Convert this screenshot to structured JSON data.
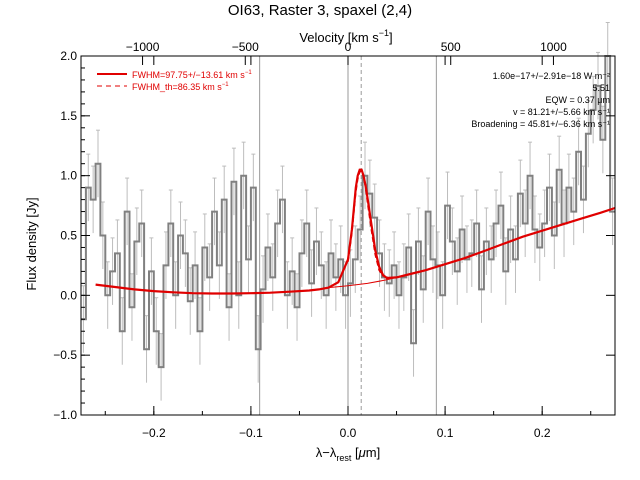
{
  "chart_data": {
    "type": "line",
    "title": "OI63, Raster 3, spaxel (2,4)",
    "xlabel": "λ−λ_rest [μm]",
    "xlabel_main": "λ−λ",
    "xlabel_sub": "rest",
    "xlabel_unit_open": " [",
    "xlabel_unit_mu": "μ",
    "xlabel_unit_close": "m]",
    "ylabel": "Flux density [Jy]",
    "top_axis_label": "Velocity [km s⁻¹]",
    "top_axis_label_base": "Velocity [km s",
    "top_axis_label_sup": "−1",
    "top_axis_label_close": "]",
    "xlim": [
      -0.275,
      0.275
    ],
    "ylim": [
      -1.0,
      2.0
    ],
    "x_ticks": [
      -0.2,
      -0.1,
      0.0,
      0.1,
      0.2
    ],
    "x_tick_labels": [
      "−0.2",
      "−0.1",
      "0.0",
      "0.1",
      "0.2"
    ],
    "y_ticks": [
      -1.0,
      -0.5,
      0.0,
      0.5,
      1.0,
      1.5,
      2.0
    ],
    "y_tick_labels": [
      "−1.0",
      "−0.5",
      "0.0",
      "0.5",
      "1.0",
      "1.5",
      "2.0"
    ],
    "top_ticks_kms": [
      -1000,
      -500,
      0,
      500,
      1000
    ],
    "top_tick_labels": [
      "−1000",
      "−500",
      "0",
      "500",
      "1000"
    ],
    "top_tick_wavelengths": [
      -0.2116,
      -0.1058,
      0.0,
      0.1058,
      0.2116
    ],
    "vertical_lines": [
      -0.091,
      0.0,
      0.091
    ],
    "line_center_dashed": 0.0136,
    "legend": {
      "placement": "top-left",
      "entries": [
        {
          "label": "FWHM=97.75+/−13.61 km s⁻¹",
          "base": "FWHM=97.75+/−13.61 km s",
          "sup": "−1",
          "style": "solid"
        },
        {
          "label": "FWHM_th=86.35 km s⁻¹",
          "base": "FWHM_th=86.35 km s",
          "sup": "−1",
          "style": "dashed"
        }
      ]
    },
    "annotations": {
      "placement": "top-right",
      "lines": [
        "1.60e−17+/−2.91e−18 W m⁻²",
        "5.51",
        "EQW = 0.37 μm",
        "v = 81.21+/−5.66 km s⁻¹",
        "Broadening = 45.81+/−6.36 km s⁻¹"
      ]
    },
    "series": [
      {
        "type": "step",
        "color": "#808080",
        "x": [
          -0.275,
          -0.27,
          -0.265,
          -0.26,
          -0.255,
          -0.25,
          -0.245,
          -0.24,
          -0.235,
          -0.23,
          -0.225,
          -0.22,
          -0.215,
          -0.21,
          -0.205,
          -0.2,
          -0.195,
          -0.19,
          -0.185,
          -0.18,
          -0.175,
          -0.17,
          -0.165,
          -0.16,
          -0.155,
          -0.15,
          -0.145,
          -0.14,
          -0.135,
          -0.13,
          -0.125,
          -0.12,
          -0.115,
          -0.11,
          -0.105,
          -0.1,
          -0.095,
          -0.09,
          -0.085,
          -0.08,
          -0.075,
          -0.07,
          -0.065,
          -0.06,
          -0.055,
          -0.05,
          -0.045,
          -0.04,
          -0.035,
          -0.03,
          -0.025,
          -0.02,
          -0.015,
          -0.01,
          -0.005,
          0.0,
          0.005,
          0.01,
          0.015,
          0.02,
          0.025,
          0.03,
          0.035,
          0.04,
          0.045,
          0.05,
          0.055,
          0.06,
          0.065,
          0.07,
          0.075,
          0.08,
          0.085,
          0.09,
          0.095,
          0.1,
          0.105,
          0.11,
          0.115,
          0.12,
          0.125,
          0.13,
          0.135,
          0.14,
          0.145,
          0.15,
          0.155,
          0.16,
          0.165,
          0.17,
          0.175,
          0.18,
          0.185,
          0.19,
          0.195,
          0.2,
          0.205,
          0.21,
          0.215,
          0.22,
          0.225,
          0.23,
          0.235,
          0.24,
          0.245,
          0.25,
          0.255,
          0.26,
          0.265,
          0.27
        ],
        "y": [
          -0.2,
          0.9,
          0.8,
          1.1,
          0.5,
          0.0,
          0.2,
          0.35,
          -0.3,
          0.7,
          -0.1,
          0.45,
          0.6,
          -0.45,
          0.2,
          -0.3,
          -0.6,
          0.25,
          0.6,
          0.0,
          0.5,
          0.35,
          -0.05,
          0.25,
          -0.3,
          0.4,
          0.15,
          0.7,
          0.25,
          0.8,
          -0.1,
          0.95,
          0.0,
          1.0,
          0.3,
          0.9,
          -0.45,
          0.05,
          0.4,
          0.15,
          0.6,
          0.8,
          0.0,
          0.2,
          -0.1,
          0.35,
          0.6,
          0.1,
          0.45,
          0.25,
          0.0,
          0.35,
          0.15,
          0.3,
          0.0,
          0.1,
          0.3,
          0.55,
          1.0,
          0.85,
          0.65,
          0.35,
          0.15,
          0.1,
          0.25,
          0.0,
          0.15,
          0.4,
          -0.4,
          0.45,
          0.05,
          0.7,
          0.3,
          0.25,
          0.0,
          0.75,
          0.45,
          0.2,
          0.55,
          0.3,
          0.35,
          0.6,
          0.05,
          0.45,
          0.3,
          0.6,
          0.75,
          0.2,
          0.55,
          0.3,
          0.85,
          0.6,
          1.0,
          0.55,
          0.4,
          0.6,
          0.9,
          0.5,
          1.05,
          0.6,
          0.9,
          0.7,
          1.2,
          0.8,
          1.35,
          1.55,
          1.75,
          1.3,
          2.0,
          0.7
        ],
        "error": 0.28
      },
      {
        "type": "line",
        "name": "FWHM=97.75+/−13.61 km s⁻¹",
        "color": "#e00000",
        "x": [
          -0.26,
          -0.24,
          -0.22,
          -0.2,
          -0.18,
          -0.16,
          -0.14,
          -0.12,
          -0.1,
          -0.08,
          -0.06,
          -0.04,
          -0.03,
          -0.02,
          -0.01,
          0.0,
          0.004,
          0.008,
          0.01,
          0.012,
          0.014,
          0.016,
          0.018,
          0.02,
          0.024,
          0.028,
          0.032,
          0.036,
          0.04,
          0.05,
          0.06,
          0.08,
          0.1,
          0.12,
          0.14,
          0.16,
          0.18,
          0.2,
          0.22,
          0.24,
          0.26,
          0.275
        ],
        "y": [
          0.09,
          0.07,
          0.05,
          0.035,
          0.025,
          0.018,
          0.015,
          0.015,
          0.018,
          0.022,
          0.03,
          0.04,
          0.05,
          0.065,
          0.11,
          0.3,
          0.55,
          0.9,
          1.0,
          1.05,
          1.05,
          1.0,
          0.92,
          0.82,
          0.6,
          0.38,
          0.24,
          0.17,
          0.145,
          0.15,
          0.17,
          0.21,
          0.26,
          0.31,
          0.37,
          0.43,
          0.49,
          0.54,
          0.59,
          0.64,
          0.69,
          0.73
        ]
      },
      {
        "type": "line",
        "name": "FWHM_th=86.35 km s⁻¹",
        "style": "dashed",
        "color": "#e00000",
        "x": [
          0.0,
          0.004,
          0.008,
          0.01,
          0.012,
          0.014,
          0.016,
          0.018,
          0.02,
          0.024,
          0.028,
          0.032,
          0.036
        ],
        "y": [
          0.28,
          0.52,
          0.86,
          0.97,
          1.03,
          1.04,
          0.99,
          0.9,
          0.78,
          0.55,
          0.34,
          0.21,
          0.16
        ]
      },
      {
        "type": "line",
        "name": "continuum",
        "color": "#e00000",
        "x": [
          -0.02,
          0.0,
          0.02,
          0.04,
          0.06,
          0.08,
          0.1
        ],
        "y": [
          0.065,
          0.08,
          0.1,
          0.13,
          0.17,
          0.21,
          0.26
        ]
      }
    ]
  }
}
